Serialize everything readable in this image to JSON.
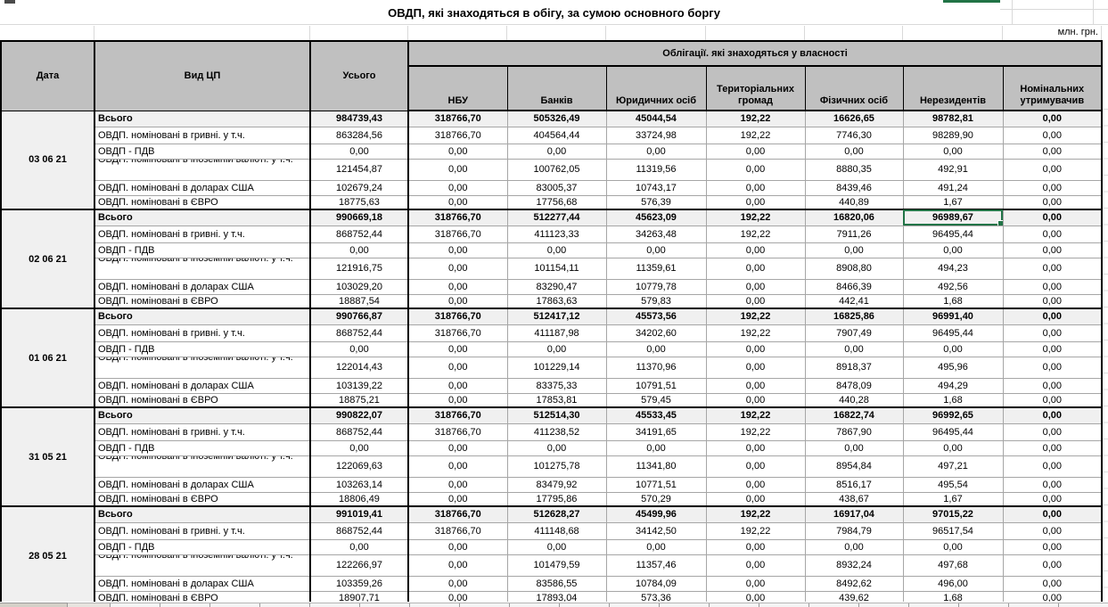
{
  "page": {
    "title": "ОВДП, які знаходяться в обігу, за сумою основного боргу",
    "unit_label": "млн. грн."
  },
  "colors": {
    "header_bg": "#c0c0c0",
    "subtotal_bg": "#f0f0f0",
    "selection_green": "#217346"
  },
  "table": {
    "columns": [
      "Дата",
      "Вид ЦП",
      "Усього"
    ],
    "group_header": "Облігації. які знаходяться у власності",
    "sub_columns": [
      "НБУ",
      "Банків",
      "Юридичних осіб",
      "Територіальних громад",
      "Фізичних осіб",
      "Нерезидентів",
      "Номінальних утримувачив"
    ],
    "row_labels": [
      "Всього",
      "ОВДП. номіновані в гривні. у т.ч.",
      "ОВДП - ПДВ",
      "ОВДП. номіновані в іноземній валюті. у т.ч.",
      "ОВДП. номіновані в доларах США",
      "ОВДП. номіновані в ЄВРО"
    ],
    "selected_cell": {
      "block": 1,
      "row": 0,
      "col": 6,
      "value": "96989,67"
    },
    "blocks": [
      {
        "date": "03 06 21",
        "rows": [
          [
            "984739,43",
            "318766,70",
            "505326,49",
            "45044,54",
            "192,22",
            "16626,65",
            "98782,81",
            "0,00"
          ],
          [
            "863284,56",
            "318766,70",
            "404564,44",
            "33724,98",
            "192,22",
            "7746,30",
            "98289,90",
            "0,00"
          ],
          [
            "0,00",
            "0,00",
            "0,00",
            "0,00",
            "0,00",
            "0,00",
            "0,00",
            "0,00"
          ],
          [
            "121454,87",
            "0,00",
            "100762,05",
            "11319,56",
            "0,00",
            "8880,35",
            "492,91",
            "0,00"
          ],
          [
            "102679,24",
            "0,00",
            "83005,37",
            "10743,17",
            "0,00",
            "8439,46",
            "491,24",
            "0,00"
          ],
          [
            "18775,63",
            "0,00",
            "17756,68",
            "576,39",
            "0,00",
            "440,89",
            "1,67",
            "0,00"
          ]
        ]
      },
      {
        "date": "02 06 21",
        "rows": [
          [
            "990669,18",
            "318766,70",
            "512277,44",
            "45623,09",
            "192,22",
            "16820,06",
            "96989,67",
            "0,00"
          ],
          [
            "868752,44",
            "318766,70",
            "411123,33",
            "34263,48",
            "192,22",
            "7911,26",
            "96495,44",
            "0,00"
          ],
          [
            "0,00",
            "0,00",
            "0,00",
            "0,00",
            "0,00",
            "0,00",
            "0,00",
            "0,00"
          ],
          [
            "121916,75",
            "0,00",
            "101154,11",
            "11359,61",
            "0,00",
            "8908,80",
            "494,23",
            "0,00"
          ],
          [
            "103029,20",
            "0,00",
            "83290,47",
            "10779,78",
            "0,00",
            "8466,39",
            "492,56",
            "0,00"
          ],
          [
            "18887,54",
            "0,00",
            "17863,63",
            "579,83",
            "0,00",
            "442,41",
            "1,68",
            "0,00"
          ]
        ]
      },
      {
        "date": "01 06 21",
        "rows": [
          [
            "990766,87",
            "318766,70",
            "512417,12",
            "45573,56",
            "192,22",
            "16825,86",
            "96991,40",
            "0,00"
          ],
          [
            "868752,44",
            "318766,70",
            "411187,98",
            "34202,60",
            "192,22",
            "7907,49",
            "96495,44",
            "0,00"
          ],
          [
            "0,00",
            "0,00",
            "0,00",
            "0,00",
            "0,00",
            "0,00",
            "0,00",
            "0,00"
          ],
          [
            "122014,43",
            "0,00",
            "101229,14",
            "11370,96",
            "0,00",
            "8918,37",
            "495,96",
            "0,00"
          ],
          [
            "103139,22",
            "0,00",
            "83375,33",
            "10791,51",
            "0,00",
            "8478,09",
            "494,29",
            "0,00"
          ],
          [
            "18875,21",
            "0,00",
            "17853,81",
            "579,45",
            "0,00",
            "440,28",
            "1,68",
            "0,00"
          ]
        ]
      },
      {
        "date": "31 05 21",
        "rows": [
          [
            "990822,07",
            "318766,70",
            "512514,30",
            "45533,45",
            "192,22",
            "16822,74",
            "96992,65",
            "0,00"
          ],
          [
            "868752,44",
            "318766,70",
            "411238,52",
            "34191,65",
            "192,22",
            "7867,90",
            "96495,44",
            "0,00"
          ],
          [
            "0,00",
            "0,00",
            "0,00",
            "0,00",
            "0,00",
            "0,00",
            "0,00",
            "0,00"
          ],
          [
            "122069,63",
            "0,00",
            "101275,78",
            "11341,80",
            "0,00",
            "8954,84",
            "497,21",
            "0,00"
          ],
          [
            "103263,14",
            "0,00",
            "83479,92",
            "10771,51",
            "0,00",
            "8516,17",
            "495,54",
            "0,00"
          ],
          [
            "18806,49",
            "0,00",
            "17795,86",
            "570,29",
            "0,00",
            "438,67",
            "1,67",
            "0,00"
          ]
        ]
      },
      {
        "date": "28 05 21",
        "rows": [
          [
            "991019,41",
            "318766,70",
            "512628,27",
            "45499,96",
            "192,22",
            "16917,04",
            "97015,22",
            "0,00"
          ],
          [
            "868752,44",
            "318766,70",
            "411148,68",
            "34142,50",
            "192,22",
            "7984,79",
            "96517,54",
            "0,00"
          ],
          [
            "0,00",
            "0,00",
            "0,00",
            "0,00",
            "0,00",
            "0,00",
            "0,00",
            "0,00"
          ],
          [
            "122266,97",
            "0,00",
            "101479,59",
            "11357,46",
            "0,00",
            "8932,24",
            "497,68",
            "0,00"
          ],
          [
            "103359,26",
            "0,00",
            "83586,55",
            "10784,09",
            "0,00",
            "8492,62",
            "496,00",
            "0,00"
          ],
          [
            "18907,71",
            "0,00",
            "17893,04",
            "573,36",
            "0,00",
            "439,62",
            "1,68",
            "0,00"
          ]
        ]
      }
    ]
  }
}
